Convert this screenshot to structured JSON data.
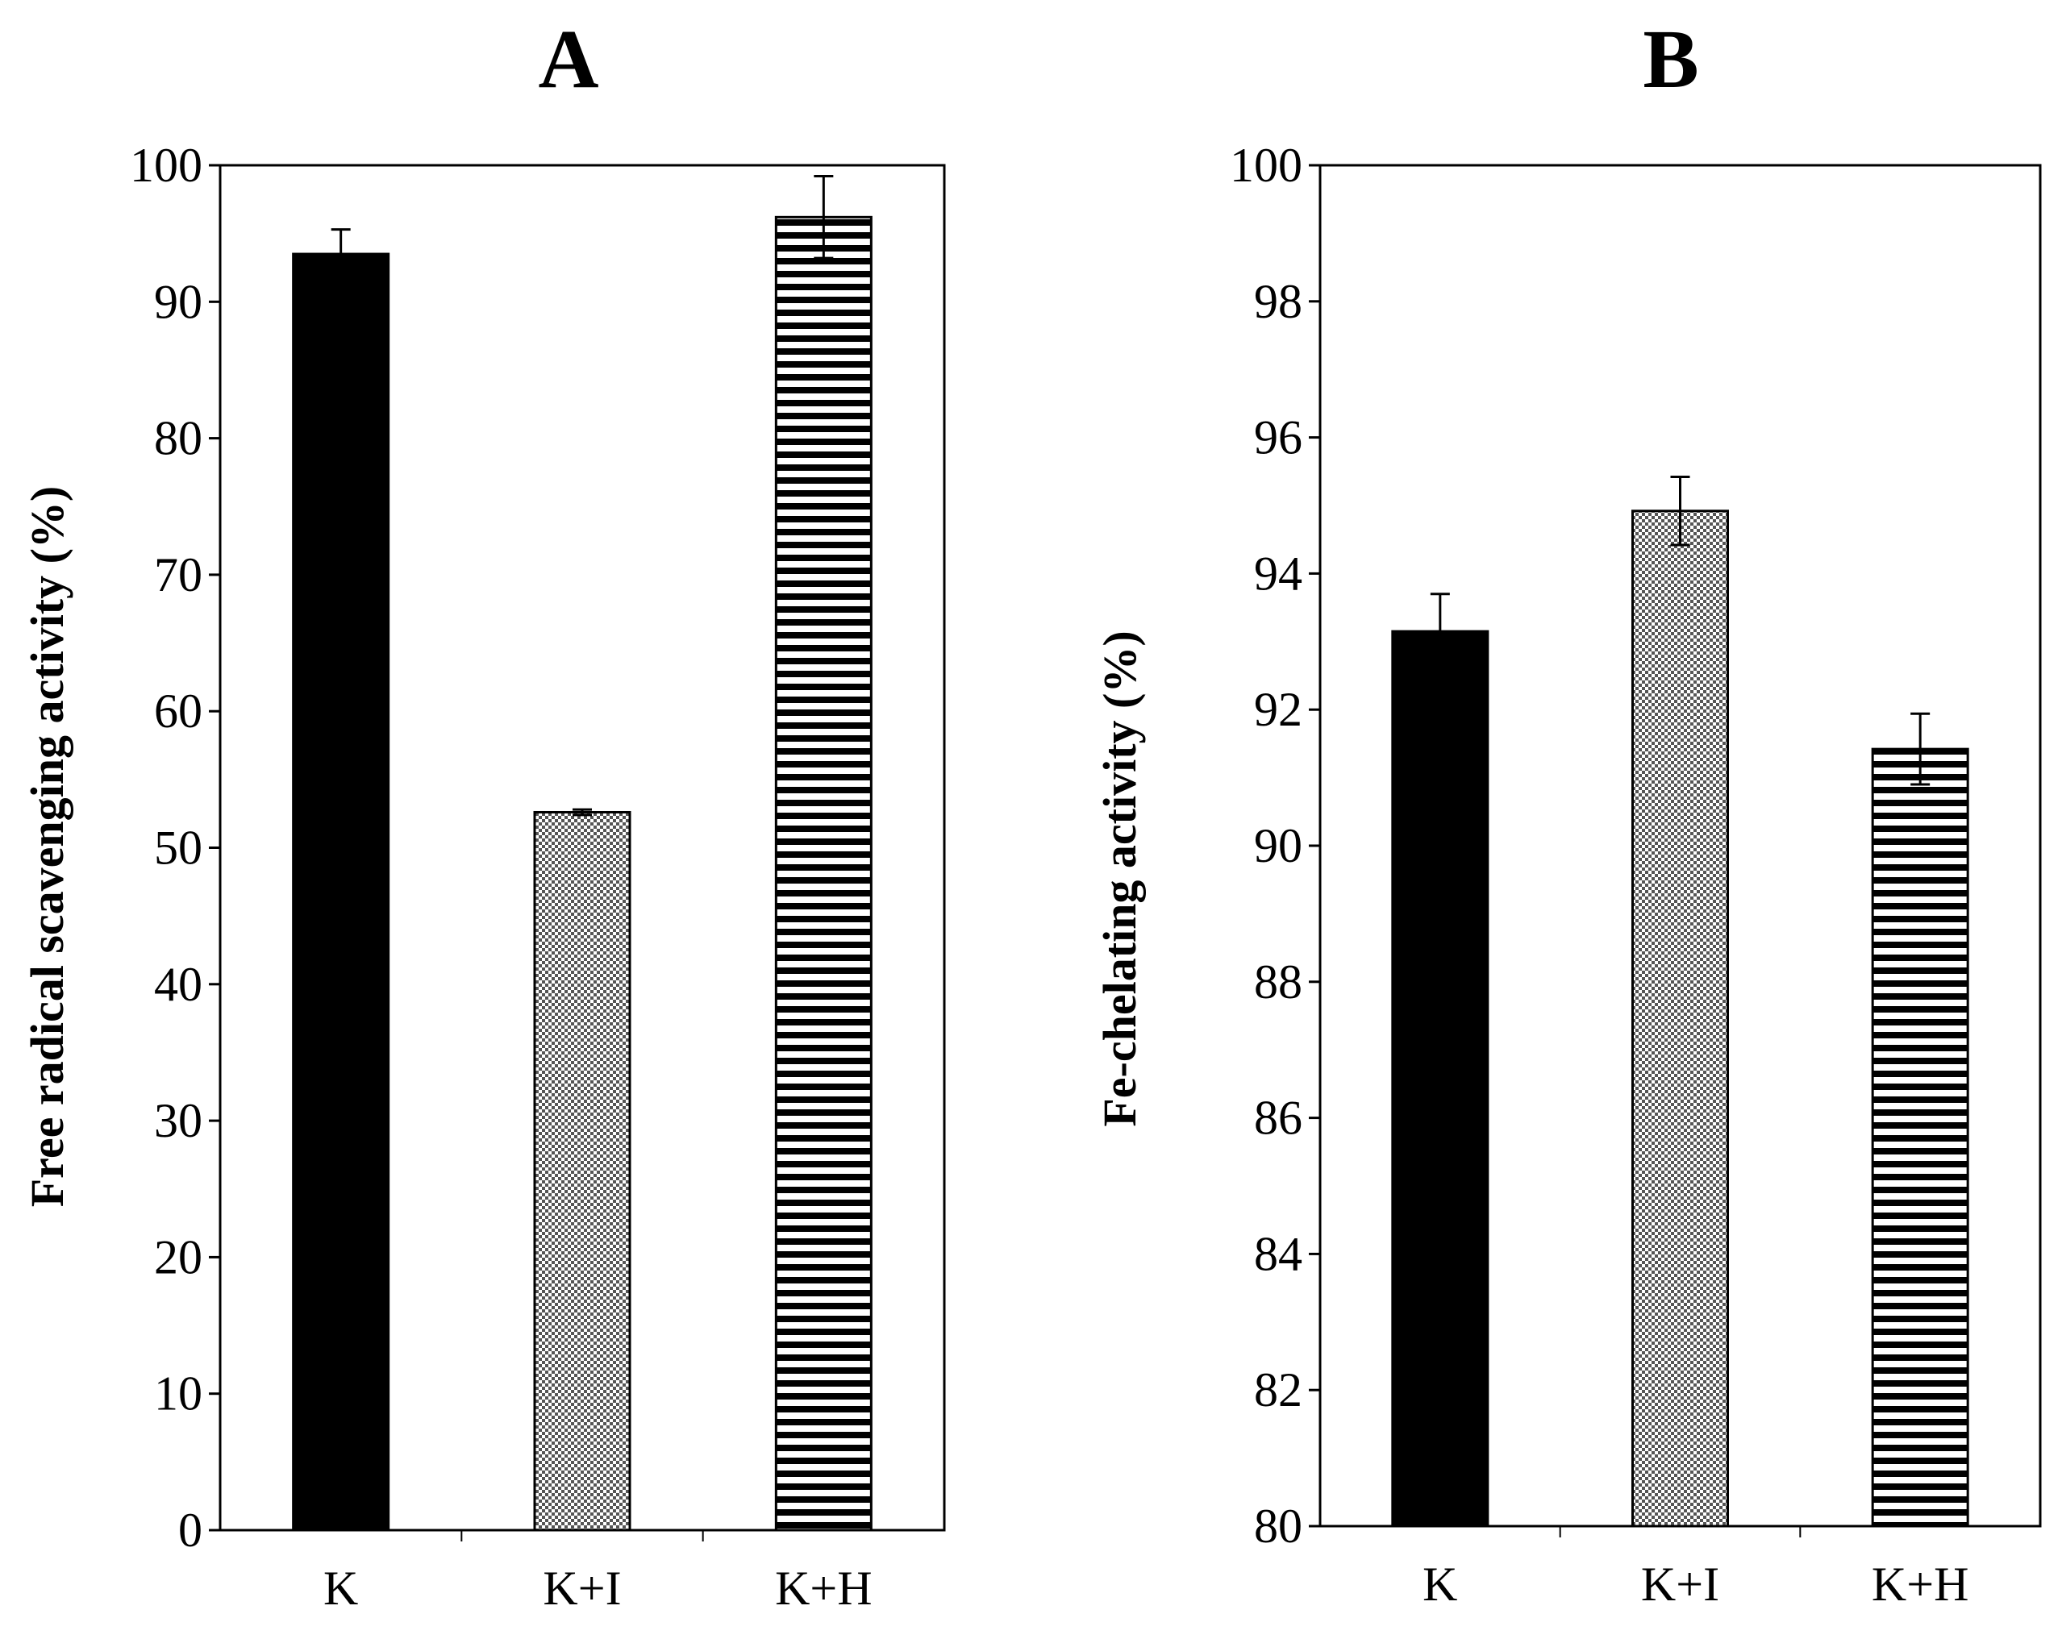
{
  "chart_data": [
    {
      "type": "bar",
      "title": "A",
      "xlabel": "",
      "ylabel": "Free radical scavenging activity (%)",
      "categories": [
        "K",
        "K+I",
        "K+H"
      ],
      "values": [
        93.5,
        52.6,
        96.2
      ],
      "errors": [
        1.8,
        0.2,
        3.0
      ],
      "patterns": [
        "solid",
        "checker",
        "hstripe"
      ],
      "ylim": [
        0,
        100
      ],
      "yticks": [
        "0",
        "10",
        "20",
        "30",
        "40",
        "50",
        "60",
        "70",
        "80",
        "90",
        "100"
      ]
    },
    {
      "type": "bar",
      "title": "B",
      "xlabel": "",
      "ylabel": "Fe-chelating activity (%)",
      "categories": [
        "K",
        "K+I",
        "K+H"
      ],
      "values": [
        93.15,
        94.92,
        91.42
      ],
      "errors": [
        0.55,
        0.5,
        0.52
      ],
      "patterns": [
        "solid",
        "checker",
        "hstripe"
      ],
      "ylim": [
        80,
        100
      ],
      "yticks": [
        "80",
        "82",
        "84",
        "86",
        "88",
        "90",
        "92",
        "94",
        "96",
        "98",
        "100"
      ]
    }
  ]
}
